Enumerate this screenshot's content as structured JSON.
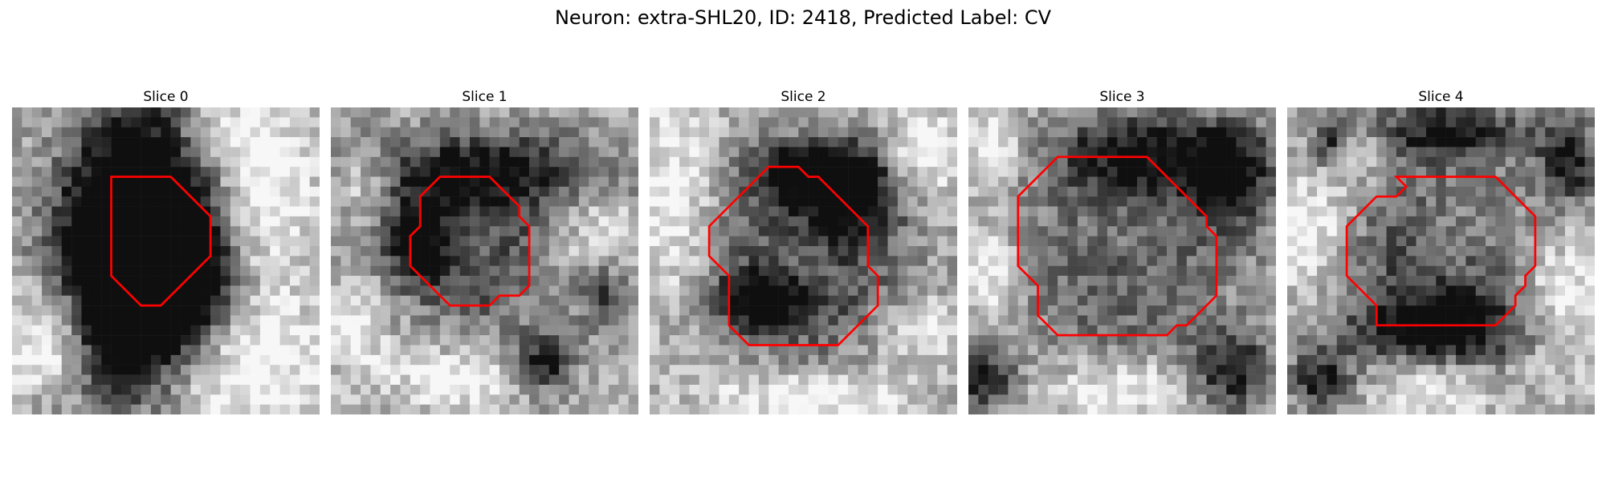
{
  "figure": {
    "title": "Neuron: extra-SHL20, ID: 2418, Predicted Label: CV",
    "outline_color": "#ff0000",
    "slices": [
      {
        "label": "Slice 0",
        "contour": [
          [
            10,
            7
          ],
          [
            16,
            7
          ],
          [
            20,
            11
          ],
          [
            20,
            15
          ],
          [
            15,
            20
          ],
          [
            13,
            20
          ],
          [
            10,
            17
          ],
          [
            10,
            8
          ]
        ],
        "dark": [
          [
            14,
            14,
            7,
            12
          ],
          [
            9,
            15,
            6,
            9
          ],
          [
            17,
            17,
            5,
            6
          ],
          [
            13,
            7,
            7,
            11
          ],
          [
            11,
            21,
            5,
            8
          ]
        ],
        "light": [
          [
            23,
            26,
            9,
            8
          ],
          [
            3,
            25,
            4,
            3
          ],
          [
            25,
            9,
            5,
            8
          ],
          [
            4,
            20,
            4,
            4
          ],
          [
            20,
            2,
            6,
            5
          ]
        ]
      },
      {
        "label": "Slice 1",
        "contour": [
          [
            11,
            7
          ],
          [
            16,
            7
          ],
          [
            19,
            10
          ],
          [
            19,
            11
          ],
          [
            20,
            12
          ],
          [
            20,
            18
          ],
          [
            19,
            19
          ],
          [
            17,
            19
          ],
          [
            16,
            20
          ],
          [
            12,
            20
          ],
          [
            8,
            16
          ],
          [
            8,
            13
          ],
          [
            9,
            12
          ],
          [
            9,
            9
          ]
        ],
        "dark": [
          [
            14,
            14,
            7,
            7
          ],
          [
            15,
            6,
            14,
            4
          ],
          [
            27,
            18,
            3,
            4
          ],
          [
            21,
            25,
            3,
            3
          ],
          [
            8,
            13,
            3,
            4
          ]
        ],
        "light": [
          [
            14,
            13,
            3.5,
            3.5
          ],
          [
            27,
            14,
            4,
            6
          ],
          [
            3,
            7,
            3,
            3
          ],
          [
            12,
            27,
            6,
            3
          ],
          [
            2,
            22,
            3,
            4
          ]
        ]
      },
      {
        "label": "Slice 2",
        "contour": [
          [
            12,
            6
          ],
          [
            15,
            6
          ],
          [
            16,
            7
          ],
          [
            17,
            7
          ],
          [
            22,
            12
          ],
          [
            22,
            16
          ],
          [
            23,
            17
          ],
          [
            23,
            20
          ],
          [
            19,
            24
          ],
          [
            10,
            24
          ],
          [
            8,
            22
          ],
          [
            8,
            17
          ],
          [
            6,
            15
          ],
          [
            6,
            12
          ]
        ],
        "dark": [
          [
            15,
            15,
            9,
            9
          ],
          [
            20,
            8,
            5,
            5
          ],
          [
            15,
            6,
            6,
            3
          ],
          [
            11,
            19,
            5,
            3
          ]
        ],
        "light": [
          [
            15,
            15,
            5,
            5
          ],
          [
            2,
            9,
            4,
            10
          ],
          [
            27,
            4,
            4,
            5
          ],
          [
            15,
            29,
            10,
            3
          ],
          [
            27,
            22,
            4,
            3
          ]
        ]
      },
      {
        "label": "Slice 3",
        "contour": [
          [
            9,
            5
          ],
          [
            18,
            5
          ],
          [
            22,
            9
          ],
          [
            24,
            11
          ],
          [
            24,
            12
          ],
          [
            25,
            13
          ],
          [
            25,
            19
          ],
          [
            22,
            22
          ],
          [
            21,
            22
          ],
          [
            20,
            23
          ],
          [
            9,
            23
          ],
          [
            7,
            21
          ],
          [
            7,
            18
          ],
          [
            5,
            16
          ],
          [
            5,
            9
          ]
        ],
        "dark": [
          [
            15,
            14,
            10,
            9
          ],
          [
            18,
            4,
            10,
            4
          ],
          [
            26,
            7,
            4,
            5
          ],
          [
            1,
            27,
            3,
            3
          ],
          [
            26,
            26,
            4,
            4
          ]
        ],
        "light": [
          [
            15,
            13,
            7,
            6
          ],
          [
            2,
            4,
            3,
            4
          ],
          [
            15,
            28,
            7,
            3
          ],
          [
            2,
            16,
            3,
            5
          ]
        ]
      },
      {
        "label": "Slice 4",
        "contour": [
          [
            11,
            7
          ],
          [
            21,
            7
          ],
          [
            25,
            11
          ],
          [
            25,
            16
          ],
          [
            24,
            17
          ],
          [
            24,
            18
          ],
          [
            23,
            19
          ],
          [
            23,
            20
          ],
          [
            22,
            21
          ],
          [
            21,
            22
          ],
          [
            9,
            22
          ],
          [
            9,
            20
          ],
          [
            6,
            17
          ],
          [
            6,
            12
          ],
          [
            9,
            9
          ],
          [
            11,
            9
          ],
          [
            12,
            8
          ]
        ],
        "dark": [
          [
            15,
            15,
            9,
            9
          ],
          [
            15,
            22,
            9,
            3
          ],
          [
            16,
            2,
            8,
            3
          ],
          [
            3,
            27,
            3,
            3
          ],
          [
            28,
            5,
            3,
            4
          ],
          [
            4,
            3,
            2,
            3
          ]
        ],
        "light": [
          [
            16,
            13,
            5,
            5
          ],
          [
            2,
            12,
            4,
            6
          ],
          [
            27,
            19,
            4,
            7
          ],
          [
            14,
            28,
            6,
            3
          ],
          [
            6,
            4,
            3,
            3
          ]
        ]
      }
    ]
  }
}
